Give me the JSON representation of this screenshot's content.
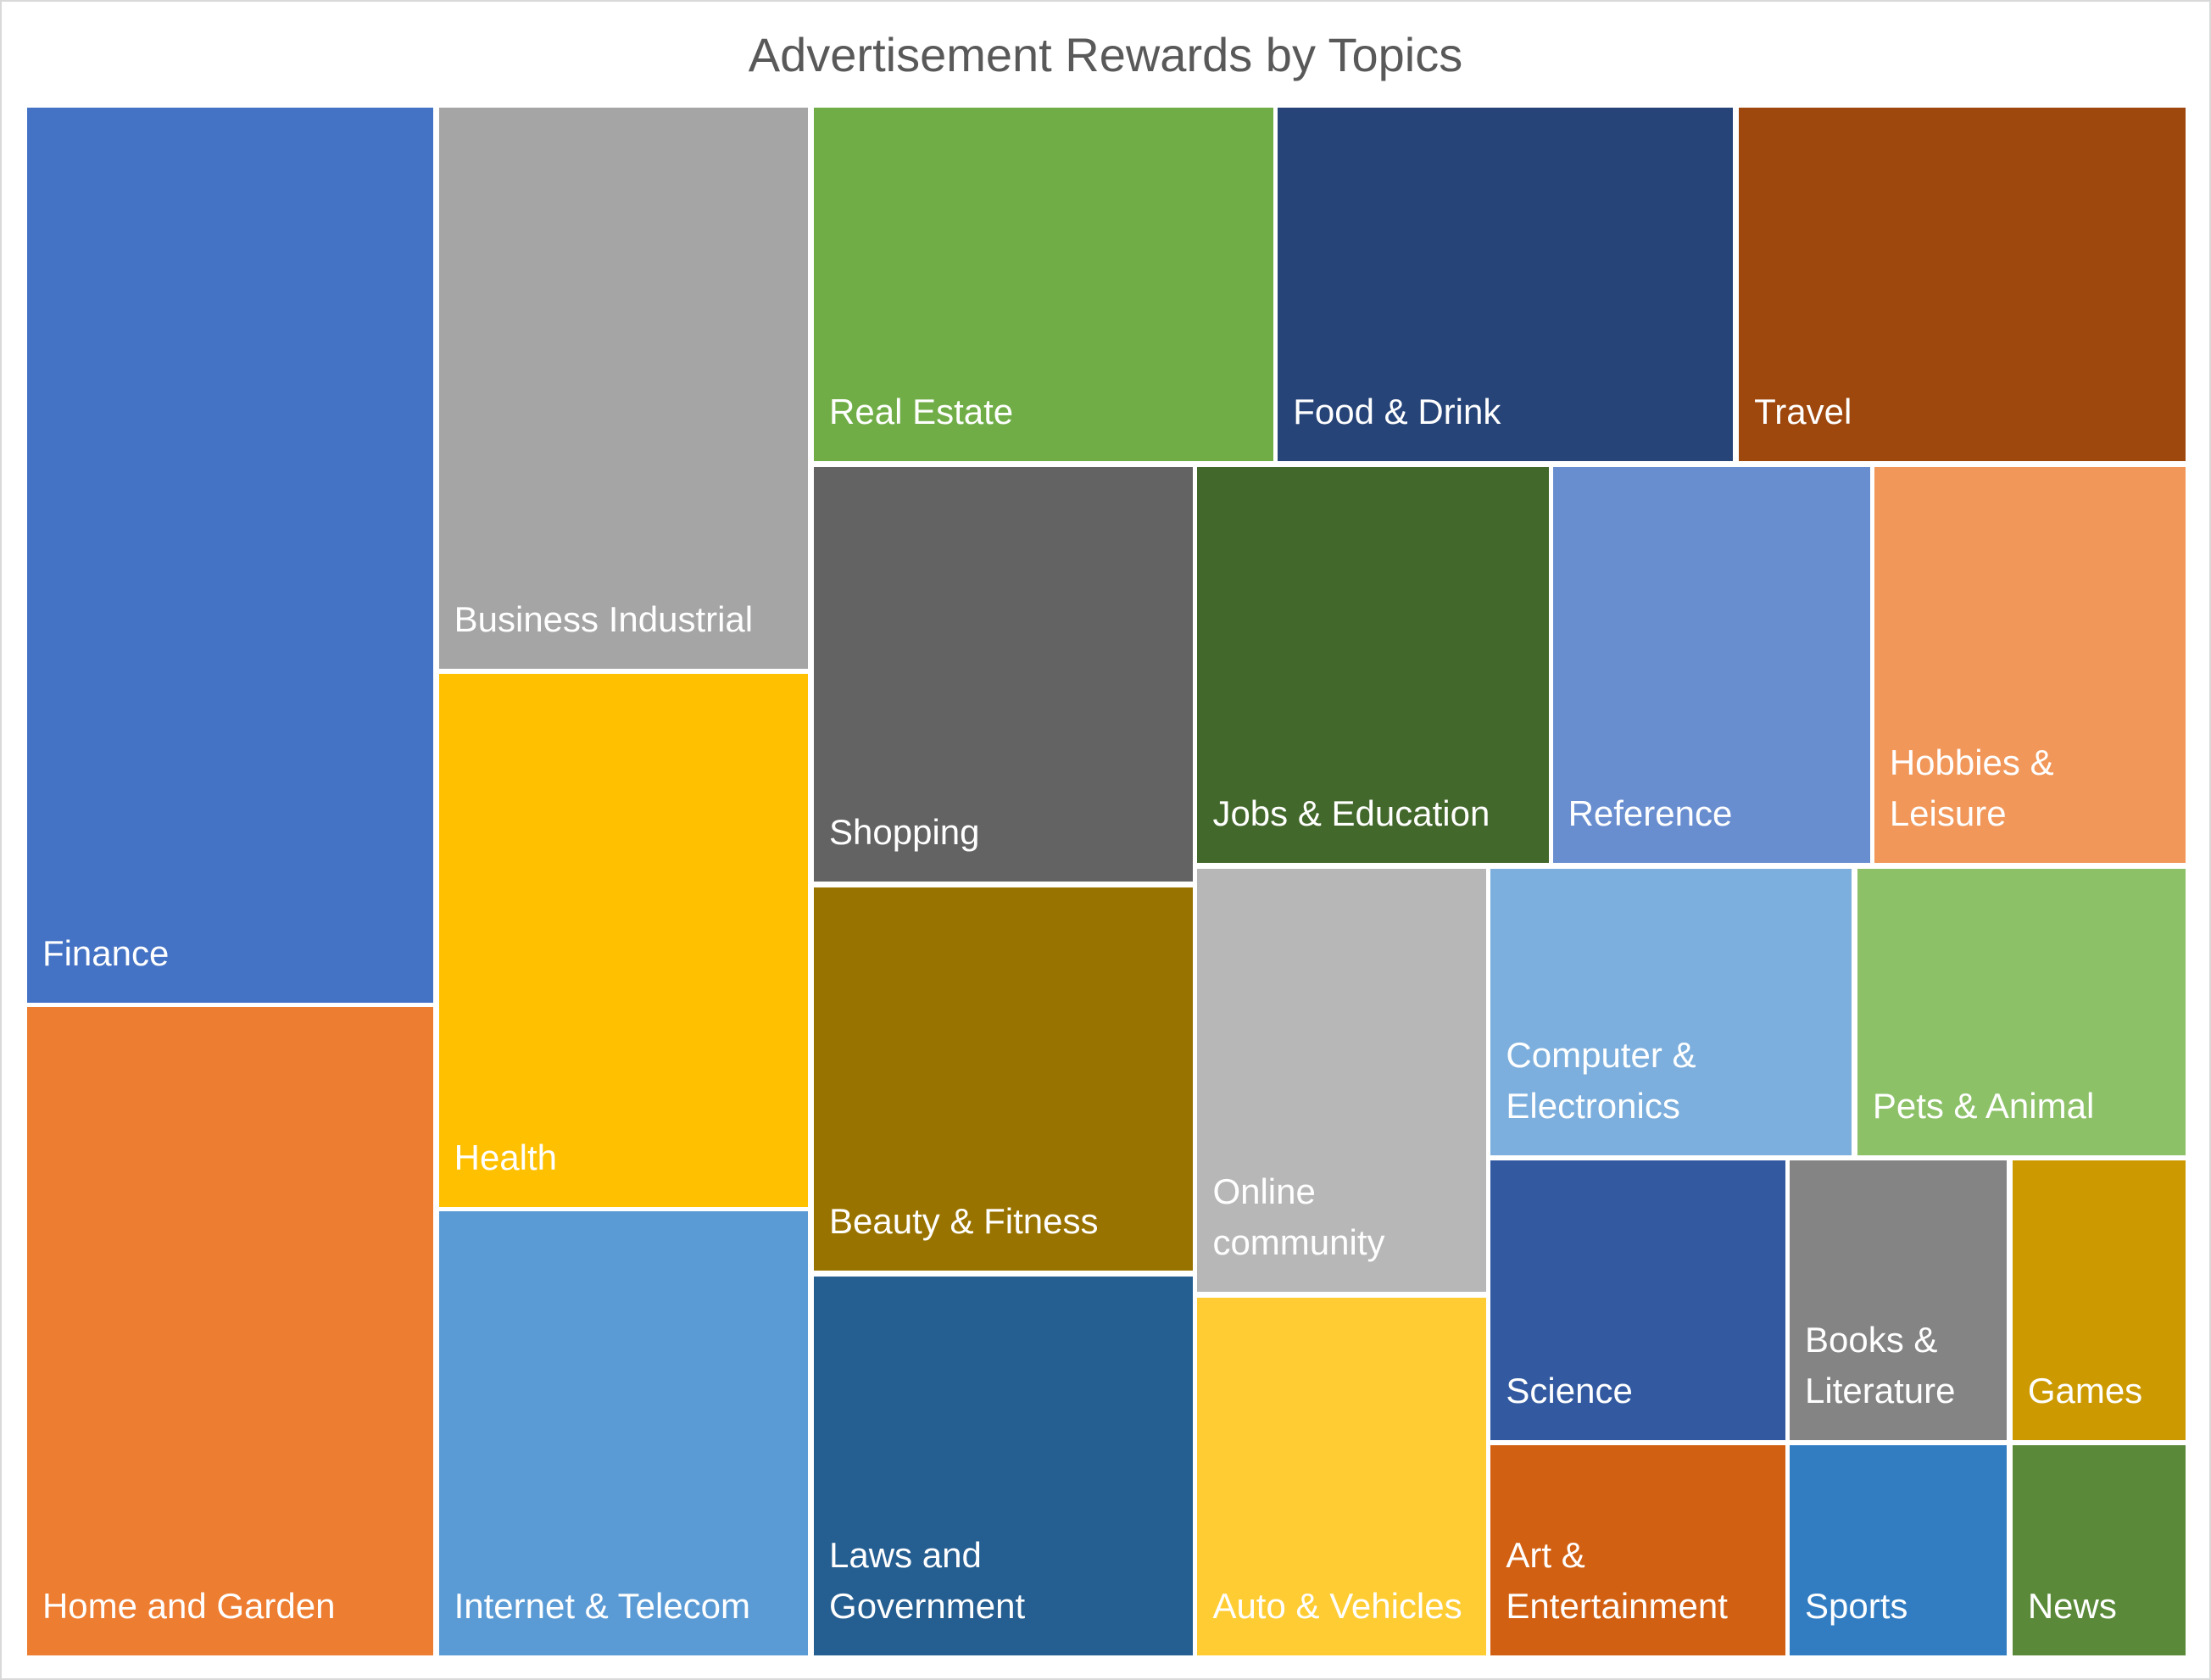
{
  "chart_data": {
    "type": "treemap",
    "title": "Advertisement Rewards by Topics",
    "items": [
      {
        "label": "Finance",
        "value": 182.9,
        "color": "#4472C4"
      },
      {
        "label": "Home and Garden",
        "value": 132.5,
        "color": "#ED7D31"
      },
      {
        "label": "Business Industrial",
        "value": 104.3,
        "color": "#A5A5A5"
      },
      {
        "label": "Health",
        "value": 99.0,
        "color": "#FFC000"
      },
      {
        "label": "Internet & Telecom",
        "value": 82.5,
        "color": "#5B9BD5"
      },
      {
        "label": "Real Estate",
        "value": 81.8,
        "color": "#70AD47"
      },
      {
        "label": "Food & Drink",
        "value": 81.1,
        "color": "#264478"
      },
      {
        "label": "Travel",
        "value": 79.6,
        "color": "#9E480E"
      },
      {
        "label": "Shopping",
        "value": 79.1,
        "color": "#636363"
      },
      {
        "label": "Jobs & Education",
        "value": 70.0,
        "color": "#43682B"
      },
      {
        "label": "Reference",
        "value": 63.2,
        "color": "#698ED0"
      },
      {
        "label": "Hobbies & Leisure",
        "value": 62.1,
        "color": "#F1975A"
      },
      {
        "label": "Beauty & Fitness",
        "value": 73.2,
        "color": "#997300"
      },
      {
        "label": "Laws and Government",
        "value": 72.4,
        "color": "#255E91"
      },
      {
        "label": "Online community",
        "value": 61.5,
        "color": "#B7B7B7"
      },
      {
        "label": "Auto & Vehicles",
        "value": 52.1,
        "color": "#FFCD33"
      },
      {
        "label": "Computer & Electronics",
        "value": 52.0,
        "color": "#7CAFDD"
      },
      {
        "label": "Pets & Animal",
        "value": 47.3,
        "color": "#8CC168"
      },
      {
        "label": "Science",
        "value": 41.4,
        "color": "#335AA1"
      },
      {
        "label": "Books & Literature",
        "value": 30.5,
        "color": "#848484"
      },
      {
        "label": "Games",
        "value": 24.4,
        "color": "#CC9A00"
      },
      {
        "label": "Art & Entertainment",
        "value": 31.1,
        "color": "#D26012"
      },
      {
        "label": "Sports",
        "value": 22.9,
        "color": "#327DC2"
      },
      {
        "label": "News",
        "value": 18.3,
        "color": "#5A8A39"
      }
    ]
  }
}
